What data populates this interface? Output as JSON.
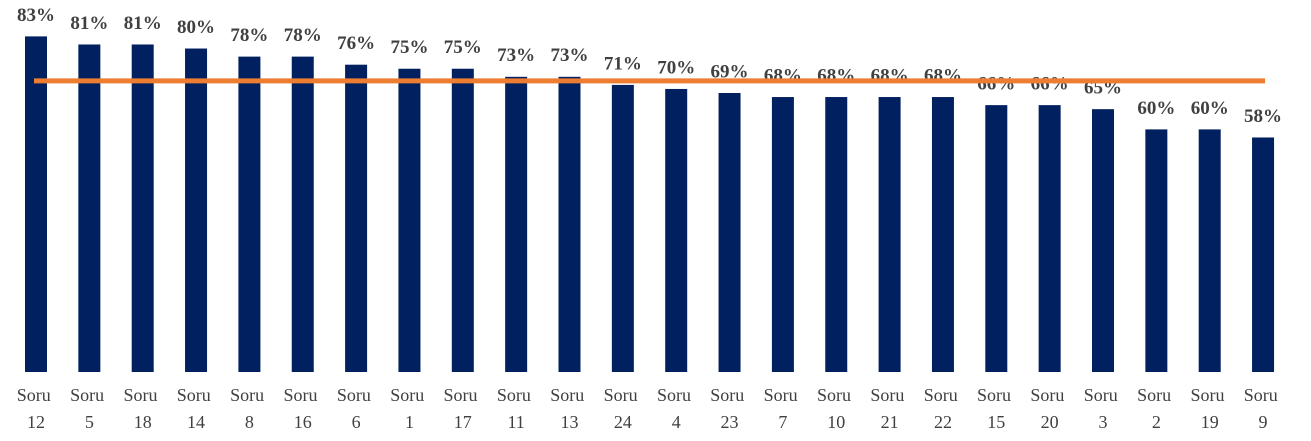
{
  "chart_data": {
    "type": "bar",
    "categories": [
      "Soru 12",
      "Soru 5",
      "Soru 18",
      "Soru 14",
      "Soru 8",
      "Soru 16",
      "Soru 6",
      "Soru 1",
      "Soru 17",
      "Soru 11",
      "Soru 13",
      "Soru 24",
      "Soru 4",
      "Soru 23",
      "Soru 7",
      "Soru 10",
      "Soru 21",
      "Soru 22",
      "Soru 15",
      "Soru 20",
      "Soru 3",
      "Soru 2",
      "Soru 19",
      "Soru 9"
    ],
    "values": [
      83,
      81,
      81,
      80,
      78,
      78,
      76,
      75,
      75,
      73,
      73,
      71,
      70,
      69,
      68,
      68,
      68,
      68,
      66,
      66,
      65,
      60,
      60,
      58
    ],
    "value_labels": [
      "83%",
      "81%",
      "81%",
      "80%",
      "78%",
      "78%",
      "76%",
      "75%",
      "75%",
      "73%",
      "73%",
      "71%",
      "70%",
      "69%",
      "68%",
      "68%",
      "68%",
      "68%",
      "66%",
      "66%",
      "65%",
      "60%",
      "60%",
      "58%"
    ],
    "color": "#002060",
    "reference_line": {
      "value": 72,
      "color": "#ed7d31"
    },
    "ylim": [
      0,
      92
    ]
  }
}
